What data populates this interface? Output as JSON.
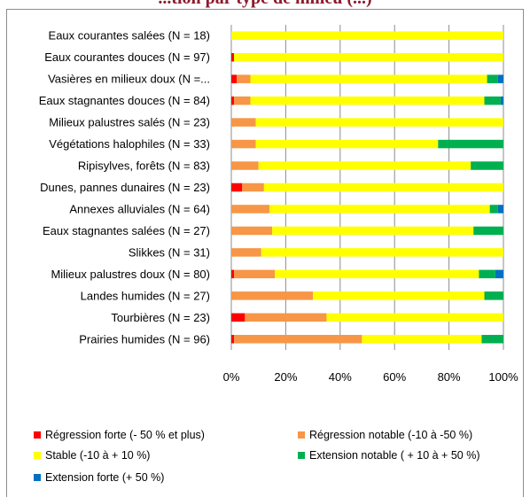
{
  "chart_data": {
    "type": "bar",
    "orientation": "horizontal",
    "stacked": "percent",
    "title": "...tion par type de milieu (...)",
    "categories": [
      "Eaux courantes salées (N = 18)",
      "Eaux courantes douces (N = 97)",
      "Vasières en milieux doux (N =...",
      "Eaux stagnantes douces (N = 84)",
      "Milieux palustres salés (N = 23)",
      "Végétations halophiles (N = 33)",
      "Ripisylves, forêts (N = 83)",
      "Dunes, pannes dunaires (N = 23)",
      "Annexes alluviales (N = 64)",
      "Eaux stagnantes salées (N = 27)",
      "Slikkes (N = 31)",
      "Milieux palustres doux (N = 80)",
      "Landes humides (N = 27)",
      "Tourbières (N = 23)",
      "Prairies humides (N = 96)"
    ],
    "series": [
      {
        "name": "Régression forte (- 50 % et plus)",
        "color": "#ff0000",
        "values": [
          0,
          1,
          2,
          1,
          0,
          0,
          0,
          4,
          0,
          0,
          0,
          1,
          0,
          5,
          1
        ]
      },
      {
        "name": "Régression notable (-10 à -50 %)",
        "color": "#f79646",
        "values": [
          0,
          0,
          5,
          6,
          9,
          9,
          10,
          8,
          14,
          15,
          11,
          15,
          30,
          30,
          47
        ]
      },
      {
        "name": "Stable (-10 à + 10 %)",
        "color": "#ffff00",
        "values": [
          100,
          99,
          87,
          86,
          91,
          67,
          78,
          88,
          81,
          74,
          89,
          75,
          63,
          65,
          44
        ]
      },
      {
        "name": "Extension notable ( + 10 à + 50 %)",
        "color": "#00b050",
        "values": [
          0,
          0,
          4,
          6,
          0,
          24,
          12,
          0,
          3,
          11,
          0,
          6,
          7,
          0,
          8
        ]
      },
      {
        "name": "Extension forte (+ 50 %)",
        "color": "#0070c0",
        "values": [
          0,
          0,
          2,
          1,
          0,
          0,
          0,
          0,
          2,
          0,
          0,
          3,
          0,
          0,
          0
        ]
      }
    ],
    "xlim": [
      0,
      100
    ],
    "xticks": [
      "0%",
      "20%",
      "40%",
      "60%",
      "80%",
      "100%"
    ],
    "grid": true,
    "legend": "bottom"
  }
}
